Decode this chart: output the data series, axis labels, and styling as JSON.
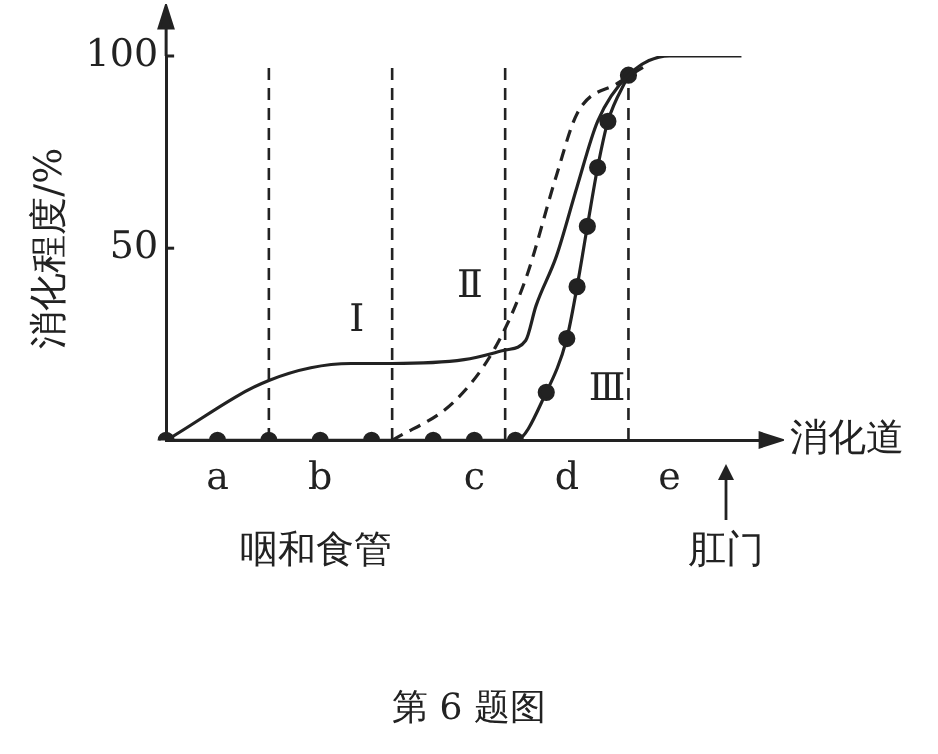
{
  "chart_data": {
    "type": "line",
    "title": "第 6 题图",
    "xlabel": "消化道",
    "ylabel": "消化程度/%",
    "categories": [
      null,
      null,
      null,
      null,
      null,
      "a",
      null,
      null,
      null,
      null,
      null,
      null,
      null,
      null,
      null,
      "b",
      null,
      null,
      null,
      null,
      null,
      null,
      null,
      null,
      null,
      null,
      null,
      null,
      null,
      null,
      "c",
      null,
      null,
      null,
      null,
      null,
      null,
      null,
      null,
      "d",
      null,
      null,
      null,
      null,
      null,
      null,
      null,
      null,
      null,
      "e",
      null,
      null,
      null,
      null,
      null,
      null,
      null,
      null,
      null
    ],
    "ylim": [
      0,
      100
    ],
    "yticks": [
      {
        "value": 0,
        "label": null
      },
      50,
      100
    ],
    "grid": false,
    "legend": false,
    "series": [
      {
        "name": "Ⅰ",
        "color": "#222222",
        "line_style": "solid",
        "marker": "none",
        "values": [
          0,
          null,
          null,
          null,
          null,
          null,
          null,
          null,
          null,
          null,
          15.6,
          null,
          null,
          null,
          null,
          null,
          null,
          null,
          20,
          null,
          null,
          null,
          20,
          null,
          null,
          null,
          null,
          null,
          null,
          21,
          null,
          null,
          null,
          23.5,
          null,
          26,
          35,
          null,
          48,
          null,
          66,
          null,
          83,
          null,
          null,
          95,
          null,
          null,
          null,
          100,
          null,
          null,
          null,
          null,
          null,
          null,
          100,
          null,
          null
        ]
      },
      {
        "name": "Ⅱ",
        "color": "#222222",
        "line_style": "dashed",
        "marker": "none",
        "values": [
          null,
          null,
          null,
          null,
          null,
          null,
          null,
          null,
          null,
          null,
          null,
          null,
          null,
          null,
          null,
          null,
          null,
          null,
          null,
          null,
          null,
          null,
          0,
          null,
          null,
          null,
          null,
          null,
          10,
          null,
          null,
          null,
          24,
          null,
          null,
          42,
          null,
          null,
          69,
          null,
          85,
          null,
          null,
          null,
          93,
          null,
          null,
          98,
          null,
          null,
          null,
          null,
          null,
          null,
          null,
          null,
          null,
          null,
          null
        ]
      },
      {
        "name": "Ⅲ",
        "color": "#222222",
        "line_style": "solid",
        "marker": "circle",
        "values": [
          0,
          null,
          null,
          null,
          null,
          0,
          null,
          null,
          null,
          null,
          0,
          null,
          null,
          null,
          null,
          0,
          null,
          null,
          null,
          null,
          0,
          null,
          null,
          null,
          null,
          null,
          0,
          null,
          null,
          null,
          0,
          null,
          null,
          null,
          0,
          null,
          null,
          12.5,
          null,
          26.5,
          40,
          55.7,
          71,
          83,
          null,
          95,
          null,
          null,
          null,
          null,
          null,
          null,
          null,
          null,
          null,
          null,
          null,
          null,
          null
        ]
      }
    ],
    "annotations": [
      "咽和食管",
      "肛门"
    ]
  }
}
